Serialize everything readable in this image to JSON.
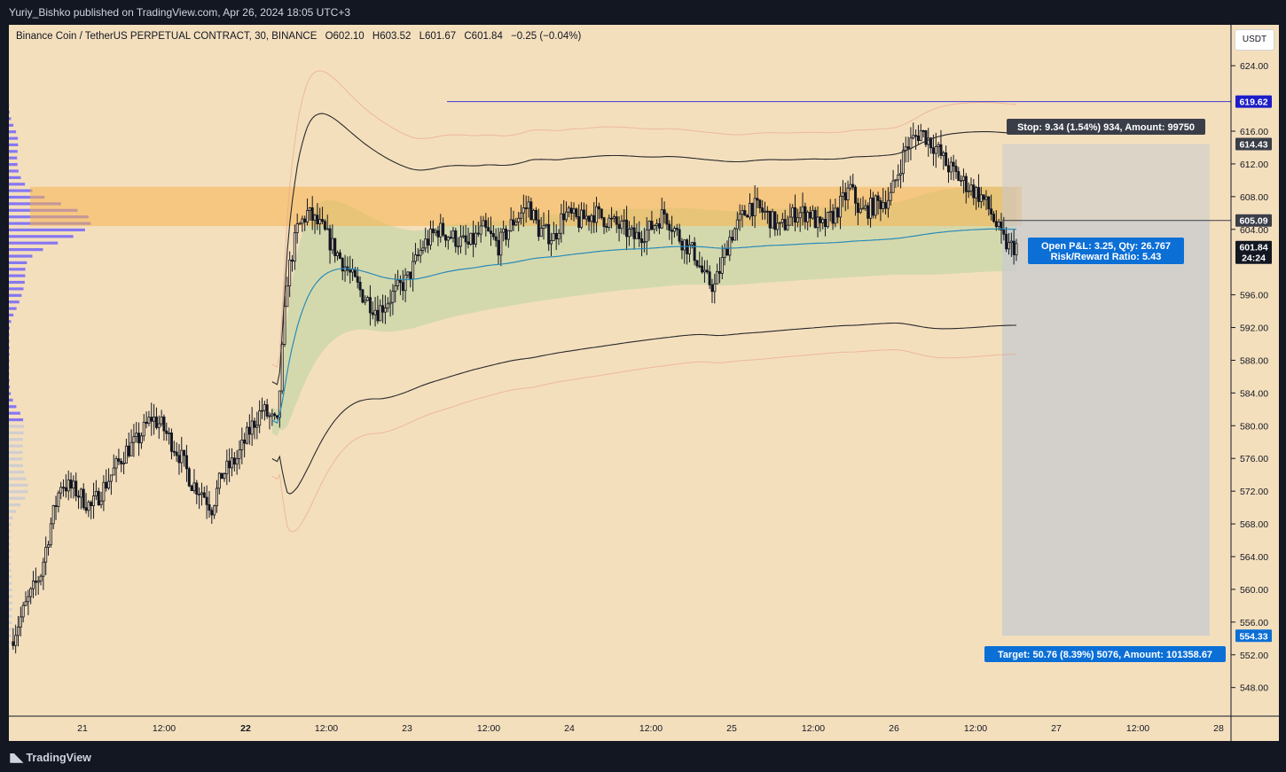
{
  "header": {
    "publisher_line": "Yuriy_Bishko published on TradingView.com, Apr 26, 2024 18:05 UTC+3"
  },
  "legend": {
    "symbol": "Binance Coin / TetherUS PERPETUAL CONTRACT, 30, BINANCE",
    "open": "O602.10",
    "high": "H603.52",
    "low": "L601.67",
    "close": "C601.84",
    "change": "−0.25 (−0.04%)"
  },
  "currency": "USDT",
  "footer": {
    "logo_text": "TradingView"
  },
  "colors": {
    "background": "#f4dfbd",
    "candle": "#131722",
    "vwap": "#2a8bb8",
    "band_outer": "#2a2a2a",
    "band_far": "#e8a88a",
    "value_area": "#c9d7a8",
    "poc_zone": "#f7b24e",
    "volume_profile": "#6a5cff",
    "volume_profile_low": "#c7c9d6",
    "position_zone": "#c8cbd0",
    "accent_blue": "#0b6fd6",
    "dark_label": "#3a3e48"
  },
  "chart_data": {
    "type": "candlestick",
    "symbol": "BNBUSDT.P",
    "interval": "30",
    "ylim": [
      544.5,
      629
    ],
    "y_ticks": [
      "624.00",
      "616.00",
      "612.00",
      "608.00",
      "604.00",
      "596.00",
      "592.00",
      "588.00",
      "584.00",
      "580.00",
      "576.00",
      "572.00",
      "568.00",
      "564.00",
      "560.00",
      "556.00",
      "552.00",
      "548.00"
    ],
    "x_ticks": [
      "21",
      "12:00",
      "22",
      "12:00",
      "23",
      "12:00",
      "24",
      "12:00",
      "25",
      "12:00",
      "26",
      "12:00",
      "27",
      "12:00",
      "28"
    ],
    "x_ticks_bold": [
      "22"
    ],
    "price_labels": {
      "high_line": "619.62",
      "stop_level": "614.43",
      "entry_level": "605.09",
      "current_price": "601.84",
      "countdown": "24:24",
      "target_level": "554.33"
    },
    "annotations": {
      "stop": "Stop: 9.34 (1.54%) 934, Amount: 99750",
      "open_pnl": "Open P&L: 3.25, Qty: 26.767",
      "risk_reward": "Risk/Reward Ratio: 5.43",
      "target": "Target: 50.76 (8.39%) 5076, Amount: 101358.67"
    },
    "key_levels": {
      "high_line_value": 619.62,
      "stop_value": 614.43,
      "entry_value": 605.09,
      "current_value": 601.84,
      "target_value": 554.33,
      "poc_zone": [
        604.4,
        609.2
      ]
    },
    "anchor_path": [
      [
        0,
        553.6
      ],
      [
        6,
        558
      ],
      [
        12,
        562
      ],
      [
        16,
        568
      ],
      [
        20,
        573
      ],
      [
        26,
        572
      ],
      [
        32,
        570
      ],
      [
        38,
        573
      ],
      [
        42,
        575
      ],
      [
        46,
        577
      ],
      [
        50,
        578
      ],
      [
        56,
        581
      ],
      [
        60,
        580
      ],
      [
        64,
        578
      ],
      [
        68,
        576
      ],
      [
        72,
        573
      ],
      [
        76,
        572
      ],
      [
        80,
        570
      ],
      [
        84,
        574
      ],
      [
        90,
        576
      ],
      [
        96,
        580
      ],
      [
        100,
        582
      ],
      [
        106,
        580
      ],
      [
        110,
        598
      ],
      [
        114,
        604
      ],
      [
        118,
        606
      ],
      [
        124,
        604
      ],
      [
        130,
        601
      ],
      [
        136,
        598
      ],
      [
        140,
        596
      ],
      [
        146,
        594
      ],
      [
        152,
        596
      ],
      [
        158,
        598
      ],
      [
        164,
        602
      ],
      [
        170,
        604
      ],
      [
        176,
        603
      ],
      [
        182,
        602
      ],
      [
        188,
        604
      ],
      [
        194,
        602
      ],
      [
        200,
        605
      ],
      [
        206,
        607
      ],
      [
        210,
        604
      ],
      [
        216,
        603
      ],
      [
        220,
        606
      ],
      [
        226,
        605
      ],
      [
        232,
        606
      ],
      [
        238,
        605
      ],
      [
        244,
        604
      ],
      [
        248,
        603
      ],
      [
        254,
        604
      ],
      [
        260,
        606
      ],
      [
        266,
        603
      ],
      [
        272,
        601
      ],
      [
        276,
        598
      ],
      [
        280,
        597
      ],
      [
        286,
        603
      ],
      [
        290,
        605
      ],
      [
        294,
        607
      ],
      [
        300,
        606
      ],
      [
        306,
        604
      ],
      [
        312,
        606
      ],
      [
        318,
        606
      ],
      [
        322,
        604
      ],
      [
        328,
        606
      ],
      [
        334,
        609
      ],
      [
        338,
        606
      ],
      [
        344,
        607
      ],
      [
        350,
        608
      ],
      [
        356,
        614
      ],
      [
        362,
        616
      ],
      [
        368,
        614
      ],
      [
        372,
        612
      ],
      [
        378,
        610
      ],
      [
        382,
        609
      ],
      [
        386,
        608
      ],
      [
        390,
        606
      ],
      [
        394,
        603
      ],
      [
        397,
        601.8
      ],
      [
        400,
        602
      ]
    ]
  }
}
